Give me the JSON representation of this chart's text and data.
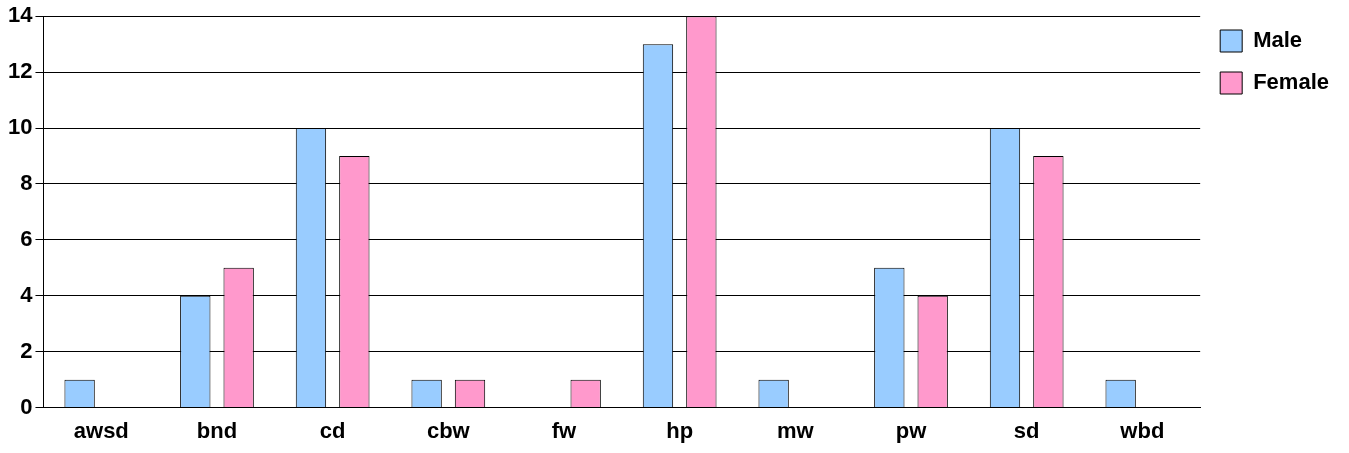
{
  "chart_data": {
    "type": "bar",
    "categories": [
      "awsd",
      "bnd",
      "cd",
      "cbw",
      "fw",
      "hp",
      "mw",
      "pw",
      "sd",
      "wbd"
    ],
    "series": [
      {
        "name": "Male",
        "color": "#99ccff",
        "values": [
          1,
          4,
          10,
          1,
          0,
          13,
          1,
          5,
          10,
          1
        ]
      },
      {
        "name": "Female",
        "color": "#ff99cc",
        "values": [
          0,
          5,
          9,
          1,
          1,
          14,
          0,
          4,
          9,
          0
        ]
      }
    ],
    "ylim": [
      0,
      14
    ],
    "yticks": [
      0,
      2,
      4,
      6,
      8,
      10,
      12,
      14
    ],
    "grid": "y",
    "legend": "top right"
  }
}
